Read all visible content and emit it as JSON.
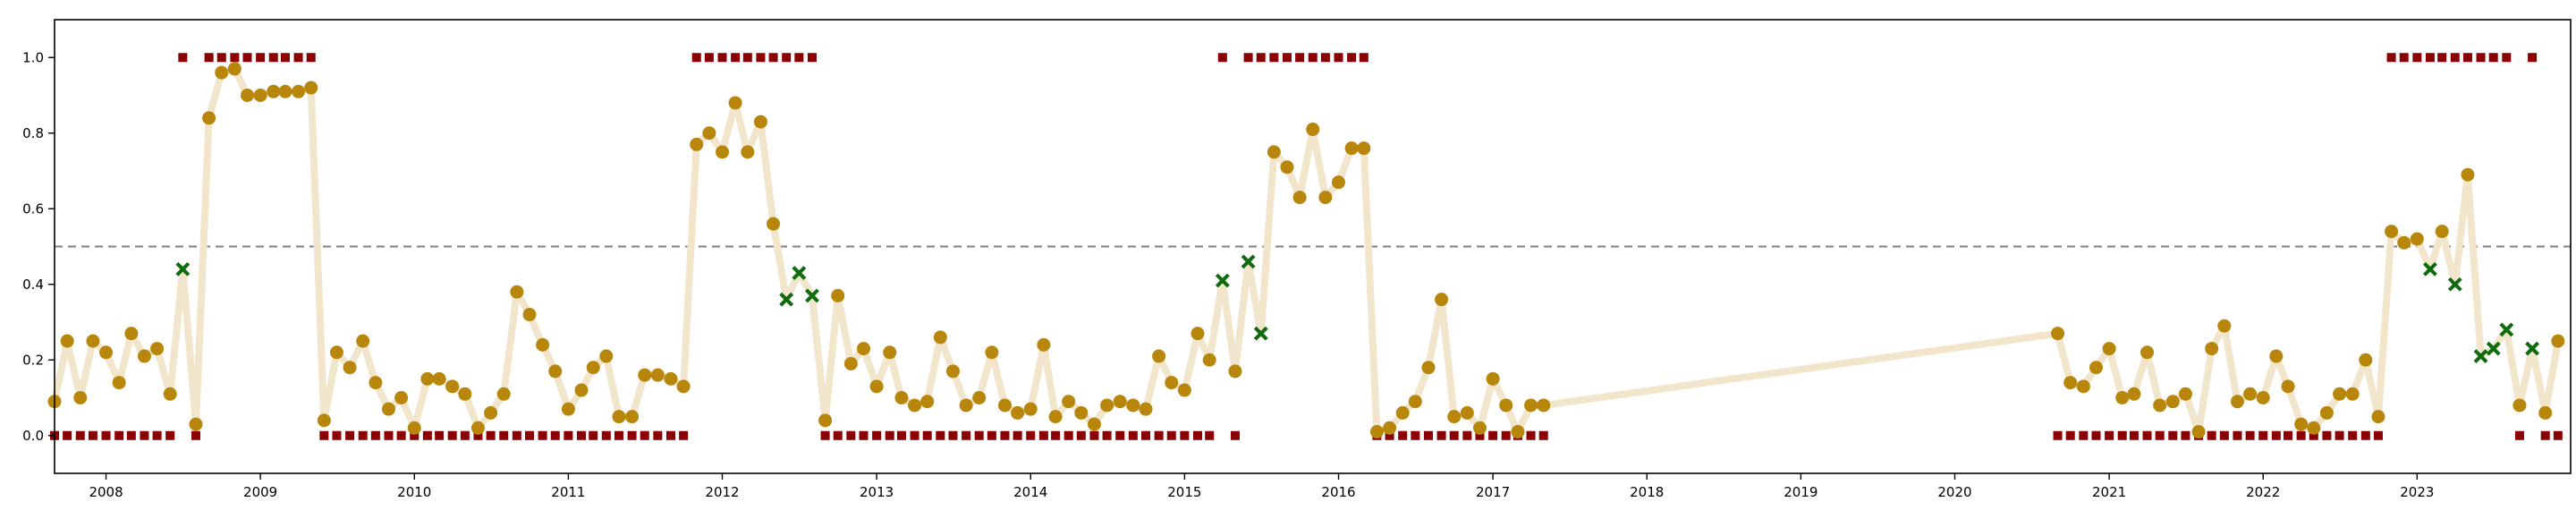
{
  "chart_data": {
    "type": "scatter",
    "title": "",
    "xlabel": "",
    "ylabel": "",
    "x_axis": "date",
    "xlim": [
      "2007-09-01",
      "2023-12-31"
    ],
    "ylim": [
      -0.1,
      1.1
    ],
    "x_ticks": [
      "2008",
      "2009",
      "2010",
      "2011",
      "2012",
      "2013",
      "2014",
      "2015",
      "2016",
      "2017",
      "2018",
      "2019",
      "2020",
      "2021",
      "2022",
      "2023"
    ],
    "y_ticks": [
      "0.0",
      "0.2",
      "0.4",
      "0.6",
      "0.8",
      "1.0"
    ],
    "y_tick_values": [
      0,
      0.2,
      0.4,
      0.6,
      0.8,
      1.0
    ],
    "threshold": 0.5,
    "grid": false,
    "legend": "none",
    "colors": {
      "line": "#f1e6cb",
      "points": "#b8860b",
      "misclassified": "#0e6b0e",
      "labels": "#8b0000",
      "threshold": "#8a8a8a",
      "axis": "#000000"
    },
    "series": [
      {
        "role": "predicted-score",
        "points": [
          [
            "2007-09-01",
            0.09
          ],
          [
            "2007-10-01",
            0.25
          ],
          [
            "2007-11-01",
            0.1
          ],
          [
            "2007-12-01",
            0.25
          ],
          [
            "2008-01-01",
            0.22
          ],
          [
            "2008-02-01",
            0.14
          ],
          [
            "2008-03-01",
            0.27
          ],
          [
            "2008-04-01",
            0.21
          ],
          [
            "2008-05-01",
            0.23
          ],
          [
            "2008-06-01",
            0.11
          ],
          [
            "2008-07-01",
            0.44
          ],
          [
            "2008-08-01",
            0.03
          ],
          [
            "2008-09-01",
            0.84
          ],
          [
            "2008-10-01",
            0.96
          ],
          [
            "2008-11-01",
            0.97
          ],
          [
            "2008-12-01",
            0.9
          ],
          [
            "2009-01-01",
            0.9
          ],
          [
            "2009-02-01",
            0.91
          ],
          [
            "2009-03-01",
            0.91
          ],
          [
            "2009-04-01",
            0.91
          ],
          [
            "2009-05-01",
            0.92
          ],
          [
            "2009-06-01",
            0.04
          ],
          [
            "2009-07-01",
            0.22
          ],
          [
            "2009-08-01",
            0.18
          ],
          [
            "2009-09-01",
            0.25
          ],
          [
            "2009-10-01",
            0.14
          ],
          [
            "2009-11-01",
            0.07
          ],
          [
            "2009-12-01",
            0.1
          ],
          [
            "2010-01-01",
            0.02
          ],
          [
            "2010-02-01",
            0.15
          ],
          [
            "2010-03-01",
            0.15
          ],
          [
            "2010-04-01",
            0.13
          ],
          [
            "2010-05-01",
            0.11
          ],
          [
            "2010-06-01",
            0.02
          ],
          [
            "2010-07-01",
            0.06
          ],
          [
            "2010-08-01",
            0.11
          ],
          [
            "2010-09-01",
            0.38
          ],
          [
            "2010-10-01",
            0.32
          ],
          [
            "2010-11-01",
            0.24
          ],
          [
            "2010-12-01",
            0.17
          ],
          [
            "2011-01-01",
            0.07
          ],
          [
            "2011-02-01",
            0.12
          ],
          [
            "2011-03-01",
            0.18
          ],
          [
            "2011-04-01",
            0.21
          ],
          [
            "2011-05-01",
            0.05
          ],
          [
            "2011-06-01",
            0.05
          ],
          [
            "2011-07-01",
            0.16
          ],
          [
            "2011-08-01",
            0.16
          ],
          [
            "2011-09-01",
            0.15
          ],
          [
            "2011-10-01",
            0.13
          ],
          [
            "2011-11-01",
            0.77
          ],
          [
            "2011-12-01",
            0.8
          ],
          [
            "2012-01-01",
            0.75
          ],
          [
            "2012-02-01",
            0.88
          ],
          [
            "2012-03-01",
            0.75
          ],
          [
            "2012-04-01",
            0.83
          ],
          [
            "2012-05-01",
            0.56
          ],
          [
            "2012-06-01",
            0.36
          ],
          [
            "2012-07-01",
            0.43
          ],
          [
            "2012-08-01",
            0.37
          ],
          [
            "2012-09-01",
            0.04
          ],
          [
            "2012-10-01",
            0.37
          ],
          [
            "2012-11-01",
            0.19
          ],
          [
            "2012-12-01",
            0.23
          ],
          [
            "2013-01-01",
            0.13
          ],
          [
            "2013-02-01",
            0.22
          ],
          [
            "2013-03-01",
            0.1
          ],
          [
            "2013-04-01",
            0.08
          ],
          [
            "2013-05-01",
            0.09
          ],
          [
            "2013-06-01",
            0.26
          ],
          [
            "2013-07-01",
            0.17
          ],
          [
            "2013-08-01",
            0.08
          ],
          [
            "2013-09-01",
            0.1
          ],
          [
            "2013-10-01",
            0.22
          ],
          [
            "2013-11-01",
            0.08
          ],
          [
            "2013-12-01",
            0.06
          ],
          [
            "2014-01-01",
            0.07
          ],
          [
            "2014-02-01",
            0.24
          ],
          [
            "2014-03-01",
            0.05
          ],
          [
            "2014-04-01",
            0.09
          ],
          [
            "2014-05-01",
            0.06
          ],
          [
            "2014-06-01",
            0.03
          ],
          [
            "2014-07-01",
            0.08
          ],
          [
            "2014-08-01",
            0.09
          ],
          [
            "2014-09-01",
            0.08
          ],
          [
            "2014-10-01",
            0.07
          ],
          [
            "2014-11-01",
            0.21
          ],
          [
            "2014-12-01",
            0.14
          ],
          [
            "2015-01-01",
            0.12
          ],
          [
            "2015-02-01",
            0.27
          ],
          [
            "2015-03-01",
            0.2
          ],
          [
            "2015-04-01",
            0.41
          ],
          [
            "2015-05-01",
            0.17
          ],
          [
            "2015-06-01",
            0.46
          ],
          [
            "2015-07-01",
            0.27
          ],
          [
            "2015-08-01",
            0.75
          ],
          [
            "2015-09-01",
            0.71
          ],
          [
            "2015-10-01",
            0.63
          ],
          [
            "2015-11-01",
            0.81
          ],
          [
            "2015-12-01",
            0.63
          ],
          [
            "2016-01-01",
            0.67
          ],
          [
            "2016-02-01",
            0.76
          ],
          [
            "2016-03-01",
            0.76
          ],
          [
            "2016-04-01",
            0.01
          ],
          [
            "2016-05-01",
            0.02
          ],
          [
            "2016-06-01",
            0.06
          ],
          [
            "2016-07-01",
            0.09
          ],
          [
            "2016-08-01",
            0.18
          ],
          [
            "2016-09-01",
            0.36
          ],
          [
            "2016-10-01",
            0.05
          ],
          [
            "2016-11-01",
            0.06
          ],
          [
            "2016-12-01",
            0.02
          ],
          [
            "2017-01-01",
            0.15
          ],
          [
            "2017-02-01",
            0.08
          ],
          [
            "2017-03-01",
            0.01
          ],
          [
            "2017-04-01",
            0.08
          ],
          [
            "2017-05-01",
            0.08
          ],
          [
            "2020-09-01",
            0.27
          ],
          [
            "2020-10-01",
            0.14
          ],
          [
            "2020-11-01",
            0.13
          ],
          [
            "2020-12-01",
            0.18
          ],
          [
            "2021-01-01",
            0.23
          ],
          [
            "2021-02-01",
            0.1
          ],
          [
            "2021-03-01",
            0.11
          ],
          [
            "2021-04-01",
            0.22
          ],
          [
            "2021-05-01",
            0.08
          ],
          [
            "2021-06-01",
            0.09
          ],
          [
            "2021-07-01",
            0.11
          ],
          [
            "2021-08-01",
            0.01
          ],
          [
            "2021-09-01",
            0.23
          ],
          [
            "2021-10-01",
            0.29
          ],
          [
            "2021-11-01",
            0.09
          ],
          [
            "2021-12-01",
            0.11
          ],
          [
            "2022-01-01",
            0.1
          ],
          [
            "2022-02-01",
            0.21
          ],
          [
            "2022-03-01",
            0.13
          ],
          [
            "2022-04-01",
            0.03
          ],
          [
            "2022-05-01",
            0.02
          ],
          [
            "2022-06-01",
            0.06
          ],
          [
            "2022-07-01",
            0.11
          ],
          [
            "2022-08-01",
            0.11
          ],
          [
            "2022-09-01",
            0.2
          ],
          [
            "2022-10-01",
            0.05
          ],
          [
            "2022-11-01",
            0.54
          ],
          [
            "2022-12-01",
            0.51
          ],
          [
            "2023-01-01",
            0.52
          ],
          [
            "2023-02-01",
            0.44
          ],
          [
            "2023-03-01",
            0.54
          ],
          [
            "2023-04-01",
            0.4
          ],
          [
            "2023-05-01",
            0.69
          ],
          [
            "2023-06-01",
            0.21
          ],
          [
            "2023-07-01",
            0.23
          ],
          [
            "2023-08-01",
            0.28
          ],
          [
            "2023-09-01",
            0.08
          ],
          [
            "2023-10-01",
            0.23
          ],
          [
            "2023-11-01",
            0.06
          ],
          [
            "2023-12-01",
            0.25
          ]
        ],
        "misclassified": [
          "2008-07-01",
          "2012-06-01",
          "2012-07-01",
          "2012-08-01",
          "2015-04-01",
          "2015-06-01",
          "2015-07-01",
          "2023-02-01",
          "2023-04-01",
          "2023-06-01",
          "2023-07-01",
          "2023-08-01",
          "2023-10-01"
        ]
      }
    ],
    "labels_positive": [
      "2008-07-01",
      "2008-09-01",
      "2008-10-01",
      "2008-11-01",
      "2008-12-01",
      "2009-01-01",
      "2009-02-01",
      "2009-03-01",
      "2009-04-01",
      "2009-05-01",
      "2011-11-01",
      "2011-12-01",
      "2012-01-01",
      "2012-02-01",
      "2012-03-01",
      "2012-04-01",
      "2012-05-01",
      "2012-06-01",
      "2012-07-01",
      "2012-08-01",
      "2015-04-01",
      "2015-06-01",
      "2015-07-01",
      "2015-08-01",
      "2015-09-01",
      "2015-10-01",
      "2015-11-01",
      "2015-12-01",
      "2016-01-01",
      "2016-02-01",
      "2016-03-01",
      "2022-11-01",
      "2022-12-01",
      "2023-01-01",
      "2023-02-01",
      "2023-03-01",
      "2023-04-01",
      "2023-05-01",
      "2023-06-01",
      "2023-07-01",
      "2023-08-01",
      "2023-10-01"
    ]
  }
}
